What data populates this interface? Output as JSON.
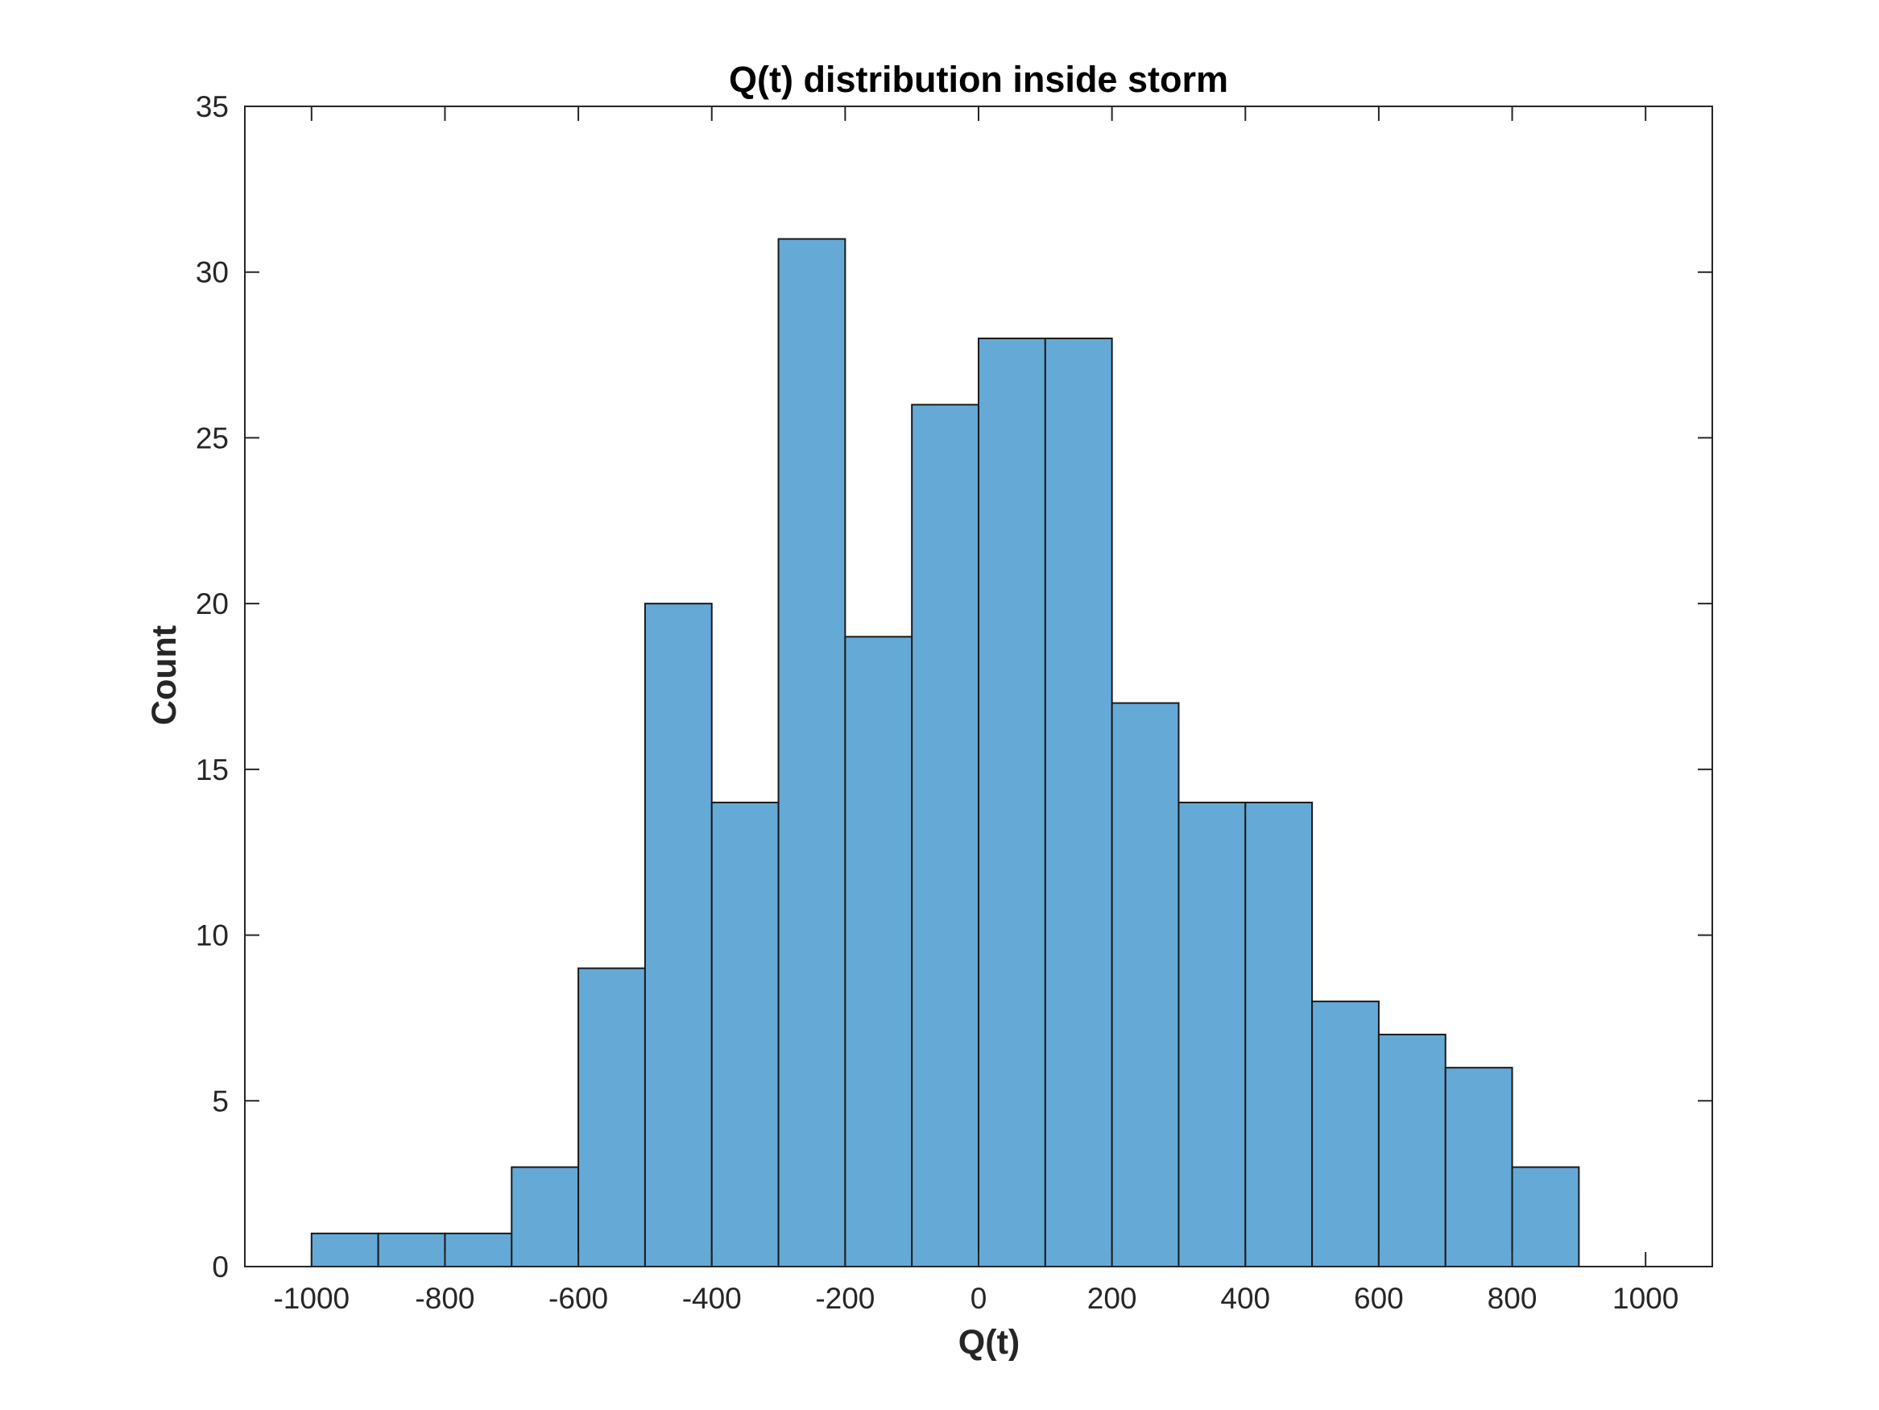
{
  "chart_data": {
    "type": "bar",
    "subtype": "histogram",
    "title": "Q(t) distribution inside storm",
    "xlabel": "Q(t)",
    "ylabel": "Count",
    "bin_edges": [
      -1000,
      -900,
      -800,
      -700,
      -600,
      -500,
      -400,
      -300,
      -200,
      -100,
      0,
      100,
      200,
      300,
      400,
      500,
      600,
      700,
      800,
      900
    ],
    "values": [
      1,
      1,
      1,
      3,
      9,
      20,
      14,
      31,
      19,
      26,
      28,
      28,
      17,
      14,
      14,
      8,
      7,
      6,
      3
    ],
    "xlim": [
      -1100,
      1100
    ],
    "ylim": [
      0,
      35
    ],
    "xticks": [
      -1000,
      -800,
      -600,
      -400,
      -200,
      0,
      200,
      400,
      600,
      800,
      1000
    ],
    "xtick_labels": [
      "-1000",
      "-800",
      "-600",
      "-400",
      "-200",
      "0",
      "200",
      "400",
      "600",
      "800",
      "1000"
    ],
    "yticks": [
      0,
      5,
      10,
      15,
      20,
      25,
      30,
      35
    ],
    "ytick_labels": [
      "0",
      "5",
      "10",
      "15",
      "20",
      "25",
      "30",
      "35"
    ],
    "grid": false,
    "legend": null,
    "bar_color": "#65a9d7",
    "edge_color": "#1a1a1a"
  }
}
